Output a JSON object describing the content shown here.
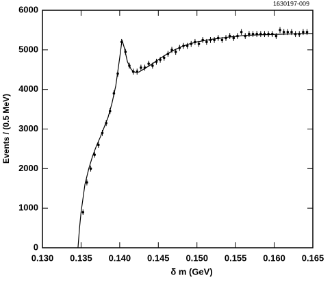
{
  "chart_data": {
    "type": "scatter",
    "code": "1630197-009",
    "xlabel": "δ m (GeV)",
    "ylabel": "Events / (0.5 MeV)",
    "xlim": [
      0.13,
      0.165
    ],
    "ylim": [
      0,
      6000
    ],
    "xticks": [
      {
        "value": 0.13,
        "label": "0.130"
      },
      {
        "value": 0.135,
        "label": "0.135"
      },
      {
        "value": 0.14,
        "label": "0.140"
      },
      {
        "value": 0.145,
        "label": "0.145"
      },
      {
        "value": 0.15,
        "label": "0.150"
      },
      {
        "value": 0.155,
        "label": "0.155"
      },
      {
        "value": 0.16,
        "label": "0.160"
      },
      {
        "value": 0.165,
        "label": "0.165"
      }
    ],
    "yticks": [
      0,
      1000,
      2000,
      3000,
      4000,
      5000,
      6000
    ],
    "color": "#000000",
    "x": [
      0.13525,
      0.13575,
      0.13625,
      0.13675,
      0.13725,
      0.13775,
      0.13825,
      0.13875,
      0.13925,
      0.13975,
      0.14025,
      0.14075,
      0.14125,
      0.14175,
      0.14225,
      0.14275,
      0.14325,
      0.14375,
      0.14425,
      0.14475,
      0.14525,
      0.14575,
      0.14625,
      0.14675,
      0.14725,
      0.14775,
      0.14825,
      0.14875,
      0.14925,
      0.14975,
      0.15025,
      0.15075,
      0.15125,
      0.15175,
      0.15225,
      0.15275,
      0.15325,
      0.15375,
      0.15425,
      0.15475,
      0.15525,
      0.15575,
      0.15625,
      0.15675,
      0.15725,
      0.15775,
      0.15825,
      0.15875,
      0.15925,
      0.15975,
      0.16025,
      0.16075,
      0.16125,
      0.16175,
      0.16225,
      0.16275,
      0.16325,
      0.16375,
      0.16425
    ],
    "values": [
      900,
      1650,
      2000,
      2350,
      2600,
      2900,
      3150,
      3450,
      3900,
      4400,
      5200,
      4950,
      4600,
      4450,
      4450,
      4550,
      4550,
      4650,
      4600,
      4700,
      4750,
      4800,
      4900,
      5000,
      4950,
      5050,
      5100,
      5100,
      5150,
      5200,
      5150,
      5250,
      5200,
      5250,
      5250,
      5300,
      5250,
      5300,
      5350,
      5300,
      5350,
      5450,
      5350,
      5400,
      5400,
      5400,
      5400,
      5400,
      5400,
      5400,
      5350,
      5500,
      5450,
      5450,
      5450,
      5400,
      5400,
      5450,
      5450
    ],
    "errors": [
      70,
      75,
      75,
      75,
      75,
      75,
      75,
      75,
      75,
      75,
      75,
      75,
      75,
      75,
      75,
      75,
      75,
      75,
      75,
      75,
      75,
      75,
      75,
      75,
      75,
      75,
      75,
      75,
      75,
      75,
      75,
      75,
      75,
      75,
      75,
      75,
      75,
      75,
      75,
      75,
      75,
      75,
      75,
      75,
      75,
      75,
      75,
      75,
      75,
      75,
      75,
      75,
      75,
      75,
      75,
      75,
      75,
      75,
      75
    ],
    "curve": {
      "x": [
        0.1346,
        0.1348,
        0.135,
        0.1355,
        0.136,
        0.1365,
        0.137,
        0.1375,
        0.138,
        0.1385,
        0.139,
        0.1395,
        0.14,
        0.1403,
        0.1406,
        0.141,
        0.1415,
        0.142,
        0.1425,
        0.143,
        0.144,
        0.145,
        0.146,
        0.147,
        0.148,
        0.149,
        0.15,
        0.152,
        0.154,
        0.156,
        0.158,
        0.16,
        0.162,
        0.165
      ],
      "values": [
        0,
        500,
        900,
        1600,
        2000,
        2320,
        2580,
        2800,
        3050,
        3300,
        3650,
        4100,
        4800,
        5250,
        5050,
        4700,
        4500,
        4430,
        4440,
        4500,
        4620,
        4750,
        4880,
        4990,
        5080,
        5150,
        5200,
        5270,
        5320,
        5360,
        5380,
        5390,
        5400,
        5410
      ]
    }
  }
}
